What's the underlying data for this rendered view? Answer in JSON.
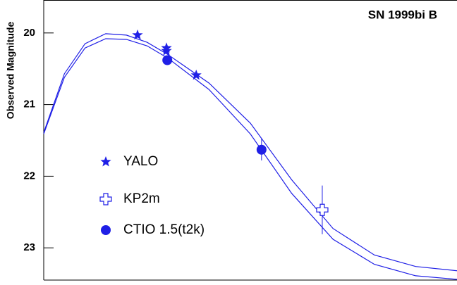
{
  "chart_data": {
    "type": "scatter",
    "title": "SN 1999bi  B",
    "y_label": "Observed Magnitude",
    "color": "#1f1fe6",
    "xlim": [
      0,
      100
    ],
    "ylim": [
      23.45,
      19.54
    ],
    "yticks": [
      20,
      21,
      22,
      23
    ],
    "series": [
      {
        "name": "YALO",
        "marker": "star",
        "x": [
          22.7,
          29.7,
          29.7,
          36.9
        ],
        "values": [
          20.03,
          20.21,
          20.25,
          20.59
        ],
        "errors": [
          null,
          null,
          null,
          null
        ]
      },
      {
        "name": "KP2m",
        "marker": "open-cross",
        "x": [
          67.4
        ],
        "values": [
          22.47
        ],
        "errors": [
          0.34
        ]
      },
      {
        "name": "CTIO 1.5(t2k)",
        "marker": "circle",
        "x": [
          29.9,
          52.7
        ],
        "values": [
          20.38,
          21.63
        ],
        "errors": [
          0.03,
          0.15
        ]
      }
    ],
    "curves": [
      {
        "x": [
          0,
          5,
          10,
          15,
          20,
          25,
          30,
          40,
          50,
          60,
          70,
          80,
          90,
          100
        ],
        "values": [
          21.39,
          20.57,
          20.15,
          20.01,
          20.03,
          20.13,
          20.3,
          20.7,
          21.26,
          22.05,
          22.73,
          23.1,
          23.26,
          23.32
        ]
      },
      {
        "x": [
          0,
          5,
          10,
          15,
          20,
          25,
          30,
          40,
          50,
          60,
          70,
          80,
          90,
          100
        ],
        "values": [
          21.41,
          20.62,
          20.21,
          20.08,
          20.09,
          20.18,
          20.35,
          20.79,
          21.41,
          22.24,
          22.88,
          23.23,
          23.39,
          23.44
        ]
      }
    ]
  }
}
